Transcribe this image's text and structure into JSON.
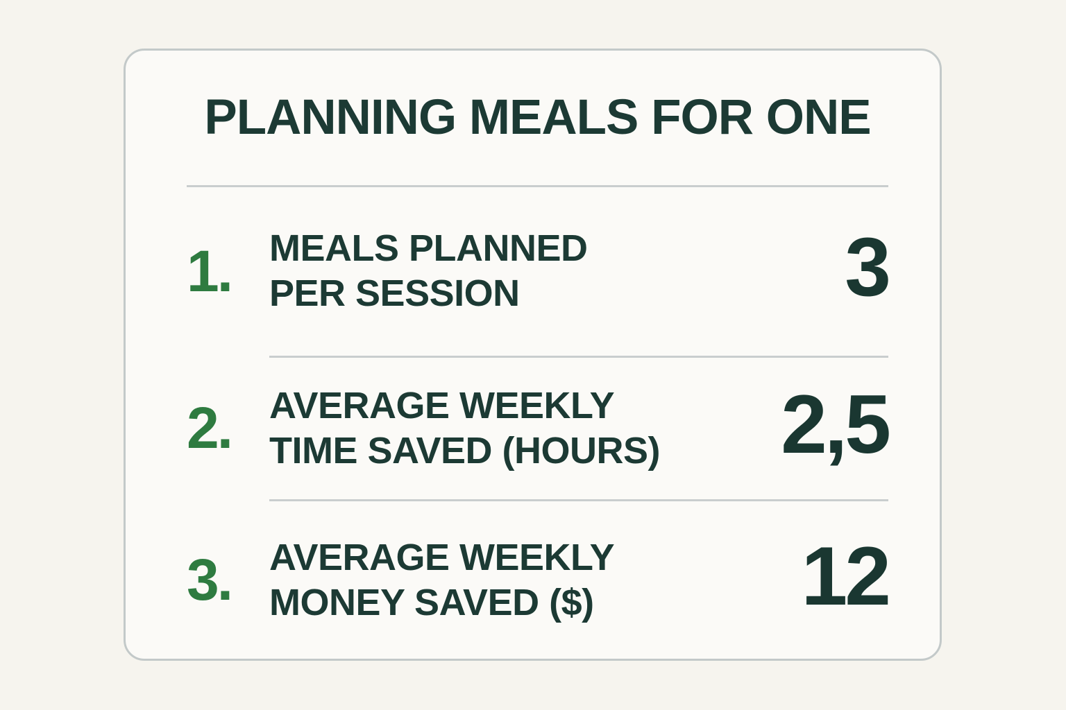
{
  "card": {
    "title": "PLANNING MEALS FOR ONE",
    "rows": [
      {
        "number": "1.",
        "label_line1": "MEALS PLANNED",
        "label_line2": "PER SESSION",
        "value": "3"
      },
      {
        "number": "2.",
        "label_line1": "AVERAGE WEEKLY",
        "label_line2": "TIME SAVED (HOURS)",
        "value": "2,5"
      },
      {
        "number": "3.",
        "label_line1": "AVERAGE WEEKLY",
        "label_line2": "MONEY SAVED ($)",
        "value": "12"
      }
    ]
  },
  "colors": {
    "page_background": "#f6f4ee",
    "card_background": "#fbfaf7",
    "card_border": "#c3c9c9",
    "divider": "#c9cdce",
    "text_dark_teal": "#1c3a34",
    "accent_green": "#2e7b40"
  }
}
